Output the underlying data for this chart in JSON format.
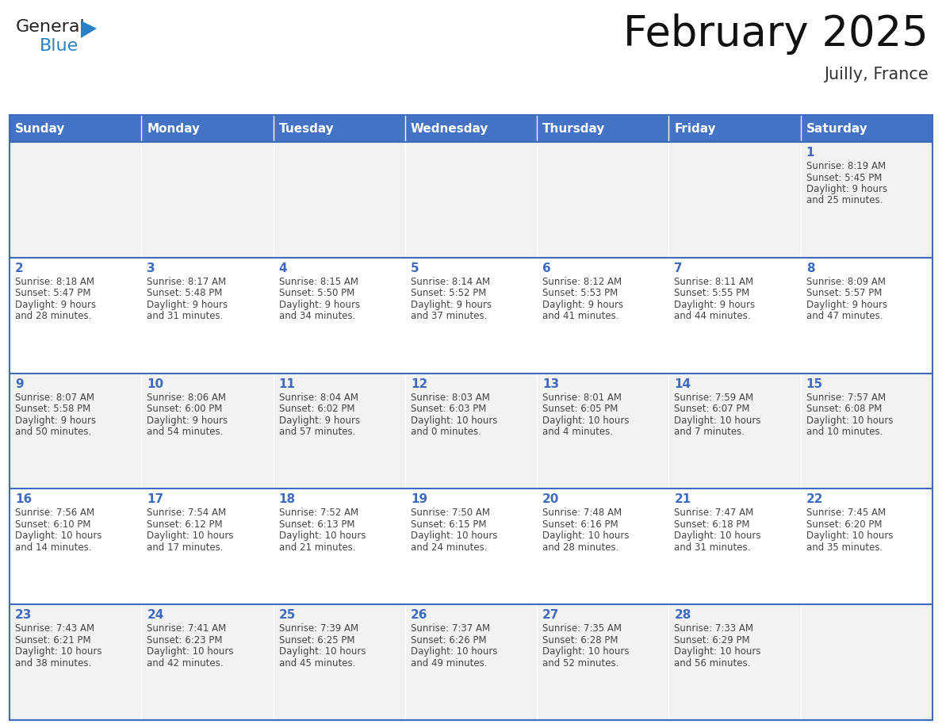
{
  "title": "February 2025",
  "subtitle": "Juilly, France",
  "days_of_week": [
    "Sunday",
    "Monday",
    "Tuesday",
    "Wednesday",
    "Thursday",
    "Friday",
    "Saturday"
  ],
  "header_bg": "#4472C4",
  "header_text": "#FFFFFF",
  "cell_bg_odd": "#F2F2F2",
  "cell_bg_even": "#FFFFFF",
  "separator_color": "#3F6BBF",
  "day_number_color": "#3F6BBF",
  "text_color": "#444444",
  "calendar_data": [
    [
      null,
      null,
      null,
      null,
      null,
      null,
      {
        "day": 1,
        "sunrise": "8:19 AM",
        "sunset": "5:45 PM",
        "daylight": "9 hours and 25 minutes"
      }
    ],
    [
      {
        "day": 2,
        "sunrise": "8:18 AM",
        "sunset": "5:47 PM",
        "daylight": "9 hours and 28 minutes"
      },
      {
        "day": 3,
        "sunrise": "8:17 AM",
        "sunset": "5:48 PM",
        "daylight": "9 hours and 31 minutes"
      },
      {
        "day": 4,
        "sunrise": "8:15 AM",
        "sunset": "5:50 PM",
        "daylight": "9 hours and 34 minutes"
      },
      {
        "day": 5,
        "sunrise": "8:14 AM",
        "sunset": "5:52 PM",
        "daylight": "9 hours and 37 minutes"
      },
      {
        "day": 6,
        "sunrise": "8:12 AM",
        "sunset": "5:53 PM",
        "daylight": "9 hours and 41 minutes"
      },
      {
        "day": 7,
        "sunrise": "8:11 AM",
        "sunset": "5:55 PM",
        "daylight": "9 hours and 44 minutes"
      },
      {
        "day": 8,
        "sunrise": "8:09 AM",
        "sunset": "5:57 PM",
        "daylight": "9 hours and 47 minutes"
      }
    ],
    [
      {
        "day": 9,
        "sunrise": "8:07 AM",
        "sunset": "5:58 PM",
        "daylight": "9 hours and 50 minutes"
      },
      {
        "day": 10,
        "sunrise": "8:06 AM",
        "sunset": "6:00 PM",
        "daylight": "9 hours and 54 minutes"
      },
      {
        "day": 11,
        "sunrise": "8:04 AM",
        "sunset": "6:02 PM",
        "daylight": "9 hours and 57 minutes"
      },
      {
        "day": 12,
        "sunrise": "8:03 AM",
        "sunset": "6:03 PM",
        "daylight": "10 hours and 0 minutes"
      },
      {
        "day": 13,
        "sunrise": "8:01 AM",
        "sunset": "6:05 PM",
        "daylight": "10 hours and 4 minutes"
      },
      {
        "day": 14,
        "sunrise": "7:59 AM",
        "sunset": "6:07 PM",
        "daylight": "10 hours and 7 minutes"
      },
      {
        "day": 15,
        "sunrise": "7:57 AM",
        "sunset": "6:08 PM",
        "daylight": "10 hours and 10 minutes"
      }
    ],
    [
      {
        "day": 16,
        "sunrise": "7:56 AM",
        "sunset": "6:10 PM",
        "daylight": "10 hours and 14 minutes"
      },
      {
        "day": 17,
        "sunrise": "7:54 AM",
        "sunset": "6:12 PM",
        "daylight": "10 hours and 17 minutes"
      },
      {
        "day": 18,
        "sunrise": "7:52 AM",
        "sunset": "6:13 PM",
        "daylight": "10 hours and 21 minutes"
      },
      {
        "day": 19,
        "sunrise": "7:50 AM",
        "sunset": "6:15 PM",
        "daylight": "10 hours and 24 minutes"
      },
      {
        "day": 20,
        "sunrise": "7:48 AM",
        "sunset": "6:16 PM",
        "daylight": "10 hours and 28 minutes"
      },
      {
        "day": 21,
        "sunrise": "7:47 AM",
        "sunset": "6:18 PM",
        "daylight": "10 hours and 31 minutes"
      },
      {
        "day": 22,
        "sunrise": "7:45 AM",
        "sunset": "6:20 PM",
        "daylight": "10 hours and 35 minutes"
      }
    ],
    [
      {
        "day": 23,
        "sunrise": "7:43 AM",
        "sunset": "6:21 PM",
        "daylight": "10 hours and 38 minutes"
      },
      {
        "day": 24,
        "sunrise": "7:41 AM",
        "sunset": "6:23 PM",
        "daylight": "10 hours and 42 minutes"
      },
      {
        "day": 25,
        "sunrise": "7:39 AM",
        "sunset": "6:25 PM",
        "daylight": "10 hours and 45 minutes"
      },
      {
        "day": 26,
        "sunrise": "7:37 AM",
        "sunset": "6:26 PM",
        "daylight": "10 hours and 49 minutes"
      },
      {
        "day": 27,
        "sunrise": "7:35 AM",
        "sunset": "6:28 PM",
        "daylight": "10 hours and 52 minutes"
      },
      {
        "day": 28,
        "sunrise": "7:33 AM",
        "sunset": "6:29 PM",
        "daylight": "10 hours and 56 minutes"
      },
      null
    ]
  ],
  "logo_general_color": "#222222",
  "logo_blue_color": "#2980C4",
  "logo_triangle_color": "#2980C4",
  "fig_width": 11.88,
  "fig_height": 9.18,
  "dpi": 100
}
